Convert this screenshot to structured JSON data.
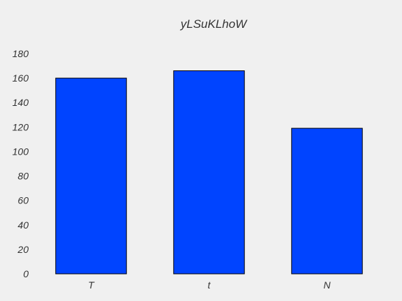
{
  "chart_data": {
    "type": "bar",
    "title": "yLSuKLhoW",
    "xlabel": "",
    "ylabel": "",
    "categories": [
      "T",
      "t",
      "N"
    ],
    "values": [
      160,
      166,
      119
    ],
    "ylim": [
      0,
      180
    ],
    "yticks": [
      0,
      20,
      40,
      60,
      80,
      100,
      120,
      140,
      160,
      180
    ],
    "grid": false,
    "legend": "none",
    "colors": {
      "bar": "#0044ff",
      "bar_edge": "#000000",
      "background": "#f0f0f0",
      "text": "#333333"
    }
  }
}
